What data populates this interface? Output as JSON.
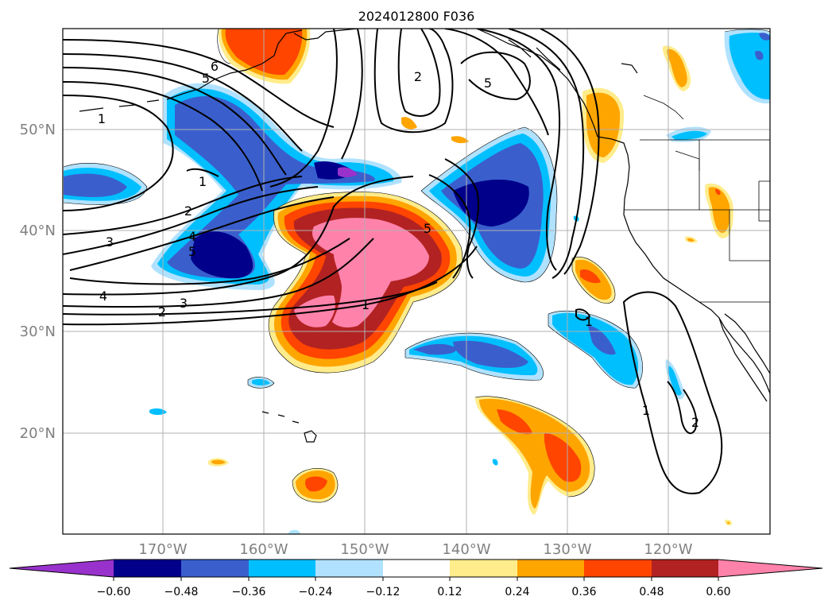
{
  "title": "2024012800 F036",
  "lat_labels": [
    "50°N",
    "40°N",
    "30°N",
    "20°N"
  ],
  "lon_labels": [
    "170°W",
    "160°W",
    "150°W",
    "140°W",
    "130°W",
    "120°W"
  ],
  "contour_labels": [
    "1",
    "1",
    "2",
    "3",
    "4",
    "5",
    "6",
    "5",
    "2",
    "3",
    "2",
    "4",
    "5",
    "1",
    "1",
    "1",
    "2",
    "5"
  ],
  "colorbar": {
    "tick_labels": [
      "−0.60",
      "−0.48",
      "−0.36",
      "−0.24",
      "−0.12",
      "0.12",
      "0.24",
      "0.36",
      "0.48",
      "0.60"
    ],
    "colors": [
      "#9932cc",
      "#00008b",
      "#3a5fcd",
      "#00bfff",
      "#b0e2ff",
      "#ffffff",
      "#ffec8b",
      "#ffa500",
      "#ff4500",
      "#b22222",
      "#ff82ab"
    ]
  }
}
